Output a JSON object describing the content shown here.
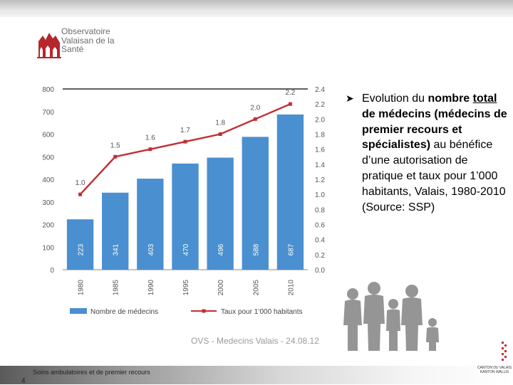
{
  "logo": {
    "lines": [
      "Observatoire",
      "Valaisan de la",
      "Santé"
    ]
  },
  "description": {
    "prefix": "Evolution du ",
    "bold1": "nombre",
    "bold_underlined": "total",
    "bold2": " de médecins (médecins de premier recours et spécialistes)",
    "rest": " au bénéfice d’une autorisation de pratique et taux pour 1’000 habitants, Valais, 1980-2010 (Source: SSP)"
  },
  "source_note": "OVS - Medecins Valais - 24.08.12",
  "footer": {
    "text": "Soins ambulatoires et de premier recours",
    "page_number": "4"
  },
  "canton": "CANTON DU VALAIS KANTON WALLIS",
  "colors": {
    "bar": "#4a8fd0",
    "line": "#c42d32",
    "axis_text": "#555555"
  },
  "chart_data": {
    "type": "bar",
    "categories": [
      "1980",
      "1985",
      "1990",
      "1995",
      "2000",
      "2005",
      "2010"
    ],
    "series": [
      {
        "name": "Nombre de médecins",
        "type": "bar",
        "axis": "left",
        "values": [
          223,
          341,
          403,
          470,
          496,
          588,
          687
        ]
      },
      {
        "name": "Taux pour 1’000 habitants",
        "type": "line",
        "axis": "right",
        "values": [
          1.0,
          1.5,
          1.6,
          1.7,
          1.8,
          2.0,
          2.2
        ]
      }
    ],
    "bar_labels": [
      "223",
      "341",
      "403",
      "470",
      "496",
      "588",
      "687"
    ],
    "line_labels": [
      "1.0",
      "1.5",
      "1.6",
      "1.7",
      "1.8",
      "2.0",
      "2.2"
    ],
    "y_left": {
      "ylim": [
        0,
        800
      ],
      "ticks": [
        "0",
        "100",
        "200",
        "300",
        "400",
        "500",
        "600",
        "700",
        "800"
      ]
    },
    "y_right": {
      "ylim": [
        0,
        2.4
      ],
      "ticks": [
        "0.0",
        "0.2",
        "0.4",
        "0.6",
        "0.8",
        "1.0",
        "1.2",
        "1.4",
        "1.6",
        "1.8",
        "2.0",
        "2.2",
        "2.4"
      ]
    },
    "legend": [
      "Nombre de médecins",
      "Taux pour 1’000 habitants"
    ],
    "legend_position": "bottom",
    "grid": false
  }
}
